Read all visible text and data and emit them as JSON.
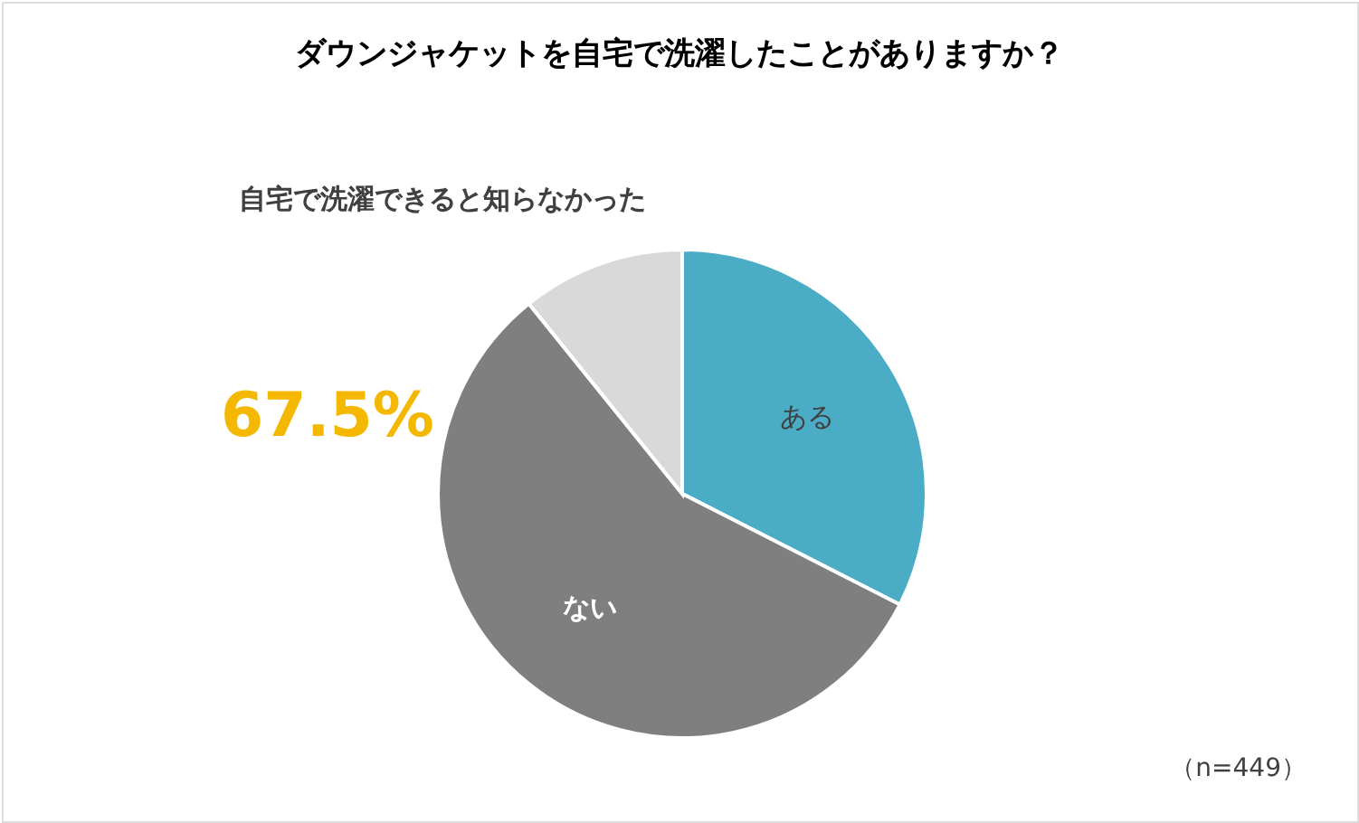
{
  "chart_data": {
    "type": "pie",
    "title": "ダウンジャケットを自宅で洗濯したことがありますか？",
    "categories": [
      "ある",
      "ない",
      "自宅で洗濯できると知らなかった"
    ],
    "values": [
      32.5,
      56.7,
      10.8
    ],
    "colors": [
      "#4bacc6",
      "#7f7f7f",
      "#d9d9d9"
    ],
    "annotations": [
      "67.5%",
      "（n=449）"
    ],
    "legend": false
  }
}
